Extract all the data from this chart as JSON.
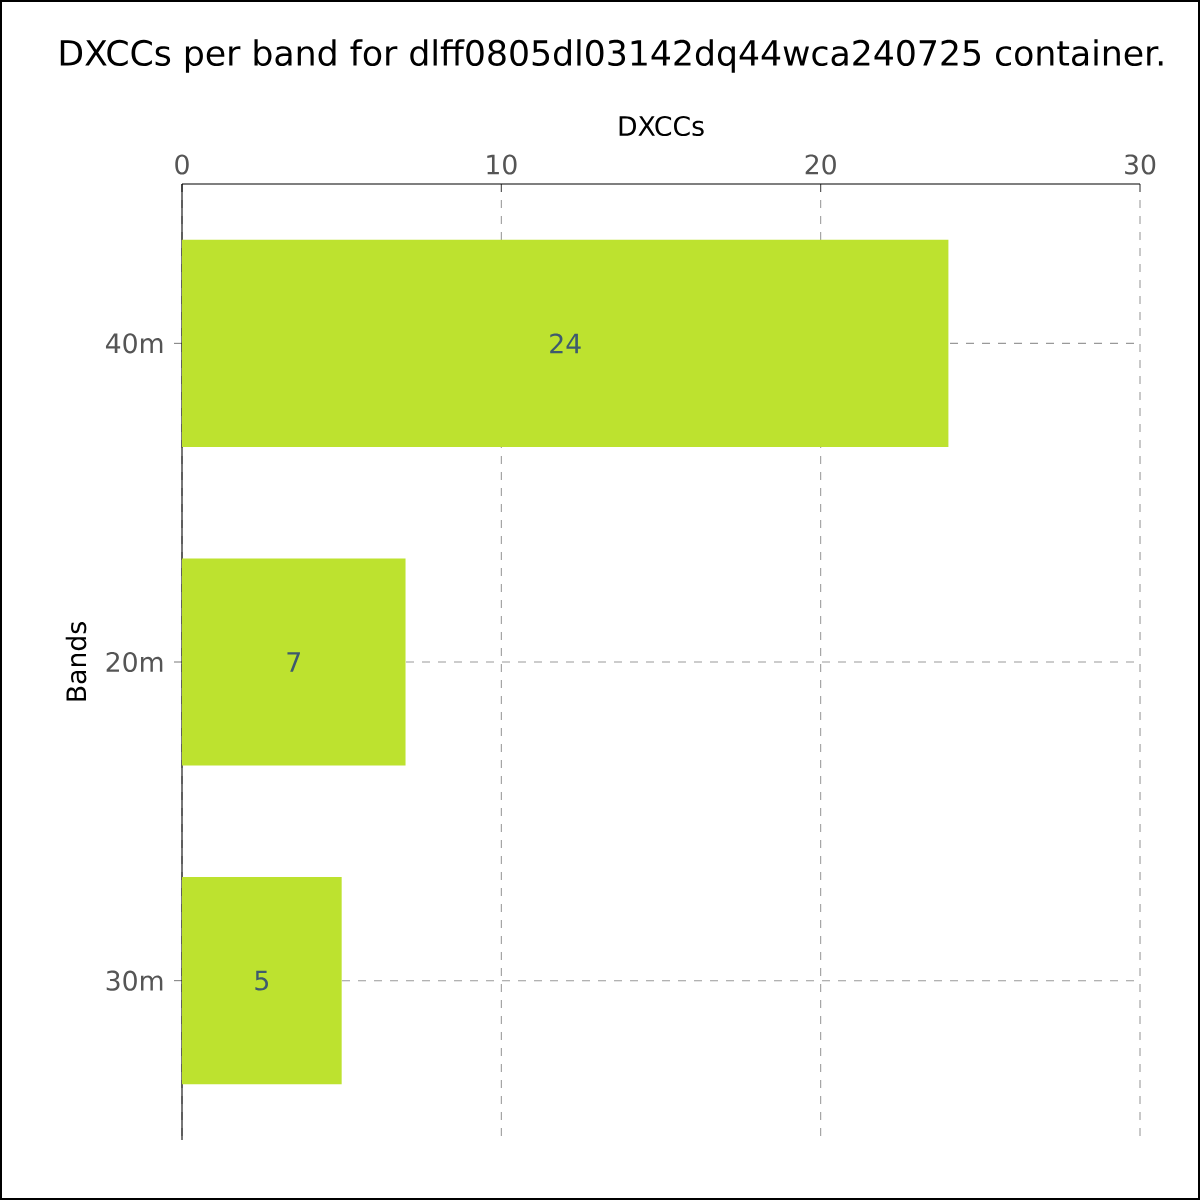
{
  "chart_data": {
    "type": "bar",
    "orientation": "horizontal",
    "title": "DXCCs per band for dlff0805dl03142dq44wca240725 container.",
    "xlabel": "DXCCs",
    "ylabel": "Bands",
    "categories": [
      "40m",
      "20m",
      "30m"
    ],
    "values": [
      24,
      7,
      5
    ],
    "color": "#bde22f",
    "xlim": [
      0,
      30
    ],
    "xticks": [
      0,
      10,
      20,
      30
    ],
    "grid": true,
    "data_labels": true
  }
}
